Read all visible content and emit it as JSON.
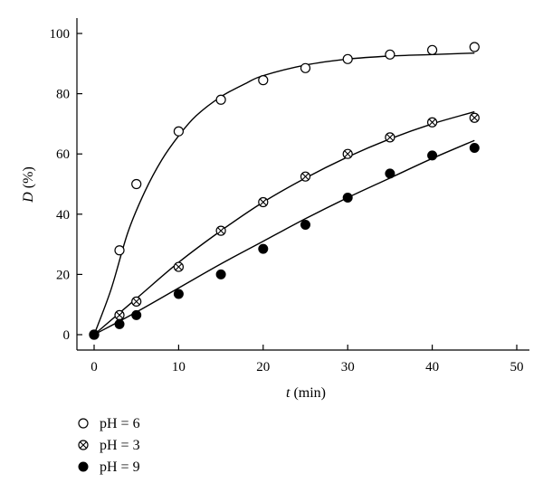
{
  "chart_data": {
    "type": "scatter",
    "xlabel": {
      "var": "t",
      "unit": " (min)"
    },
    "ylabel": {
      "var": "D",
      "unit": " (%)"
    },
    "xlim": [
      0,
      50
    ],
    "ylim": [
      0,
      100
    ],
    "xticks": [
      0,
      10,
      20,
      30,
      40,
      50
    ],
    "yticks": [
      0,
      20,
      40,
      60,
      80,
      100
    ],
    "grid": false,
    "legend_position": "bottom-left",
    "series": [
      {
        "name": "pH = 6",
        "marker": "open-circle",
        "points": [
          [
            0,
            0
          ],
          [
            3,
            28
          ],
          [
            5,
            50
          ],
          [
            10,
            67.5
          ],
          [
            15,
            78
          ],
          [
            20,
            84.5
          ],
          [
            25,
            88.5
          ],
          [
            30,
            91.5
          ],
          [
            35,
            93
          ],
          [
            40,
            94.5
          ],
          [
            45,
            95.5
          ]
        ],
        "fit": [
          [
            0,
            0
          ],
          [
            2,
            15
          ],
          [
            4,
            34
          ],
          [
            6,
            47.5
          ],
          [
            8,
            58
          ],
          [
            10,
            66
          ],
          [
            12,
            72.5
          ],
          [
            15,
            79
          ],
          [
            18,
            83.5
          ],
          [
            20,
            86
          ],
          [
            25,
            89.5
          ],
          [
            30,
            91.5
          ],
          [
            35,
            92.5
          ],
          [
            40,
            93
          ],
          [
            45,
            93.5
          ]
        ]
      },
      {
        "name": "pH = 3",
        "marker": "crossed-circle",
        "points": [
          [
            0,
            0
          ],
          [
            3,
            6.5
          ],
          [
            5,
            11
          ],
          [
            10,
            22.5
          ],
          [
            15,
            34.5
          ],
          [
            20,
            44
          ],
          [
            25,
            52.5
          ],
          [
            30,
            60
          ],
          [
            35,
            65.5
          ],
          [
            40,
            70.5
          ],
          [
            45,
            72
          ]
        ],
        "fit": [
          [
            0,
            0
          ],
          [
            5,
            12
          ],
          [
            10,
            24
          ],
          [
            15,
            34.5
          ],
          [
            20,
            44
          ],
          [
            25,
            52
          ],
          [
            30,
            59
          ],
          [
            35,
            65
          ],
          [
            40,
            70
          ],
          [
            45,
            74
          ]
        ]
      },
      {
        "name": "pH = 9",
        "marker": "filled-circle",
        "points": [
          [
            0,
            0
          ],
          [
            3,
            3.5
          ],
          [
            5,
            6.5
          ],
          [
            10,
            13.5
          ],
          [
            15,
            20
          ],
          [
            20,
            28.5
          ],
          [
            25,
            36.5
          ],
          [
            30,
            45.5
          ],
          [
            35,
            53.5
          ],
          [
            40,
            59.5
          ],
          [
            45,
            62
          ]
        ],
        "fit": [
          [
            0,
            0
          ],
          [
            5,
            7.5
          ],
          [
            10,
            15.5
          ],
          [
            15,
            23.5
          ],
          [
            20,
            31
          ],
          [
            25,
            38.5
          ],
          [
            30,
            45.5
          ],
          [
            35,
            52
          ],
          [
            40,
            58.5
          ],
          [
            45,
            64.5
          ]
        ]
      }
    ]
  }
}
